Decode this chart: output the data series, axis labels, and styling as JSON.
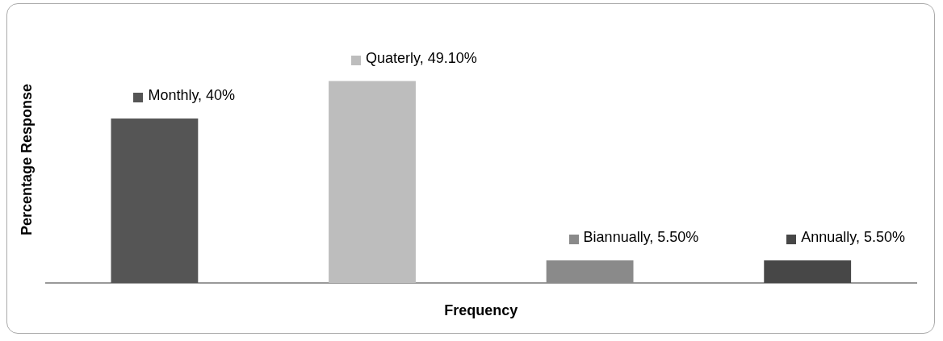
{
  "chart_data": {
    "type": "bar",
    "xlabel": "Frequency",
    "ylabel": "Percentage Response",
    "categories": [
      null,
      null,
      null,
      null
    ],
    "values": [
      40,
      49.1,
      5.5,
      5.5
    ],
    "colors": [
      "#555555",
      "#bdbdbd",
      "#8a8a8a",
      "#474747"
    ],
    "value_labels": [
      "Monthly, 40%",
      "Quaterly, 49.10%",
      "Biannually, 5.50%",
      "Annually, 5.50%"
    ],
    "grid": false,
    "legend": false
  }
}
